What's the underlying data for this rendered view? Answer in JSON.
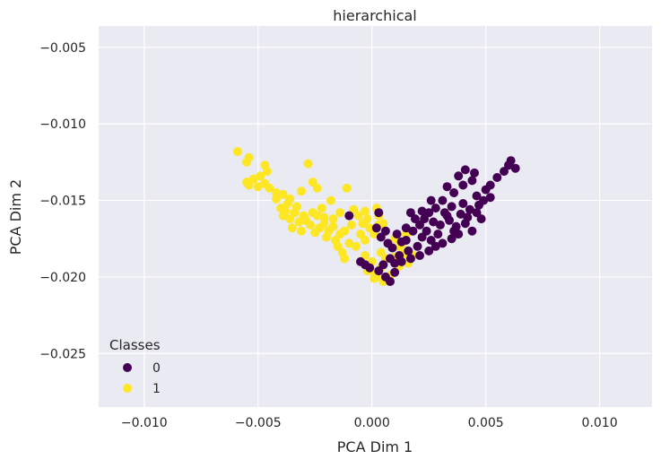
{
  "chart_data": {
    "type": "scatter",
    "title": "hierarchical",
    "xlabel": "PCA Dim 1",
    "ylabel": "PCA Dim 2",
    "xlim": [
      -0.012,
      0.0123
    ],
    "ylim": [
      -0.0285,
      -0.0036
    ],
    "xticks": [
      -0.01,
      -0.005,
      0.0,
      0.005,
      0.01
    ],
    "xtick_labels": [
      "−0.010",
      "−0.005",
      "0.000",
      "0.005",
      "0.010"
    ],
    "yticks": [
      -0.005,
      -0.01,
      -0.015,
      -0.02,
      -0.025
    ],
    "ytick_labels": [
      "−0.005",
      "−0.010",
      "−0.015",
      "−0.020",
      "−0.025"
    ],
    "grid": true,
    "legend": {
      "title": "Classes",
      "location": "lower-left",
      "entries": [
        {
          "label": "0",
          "color": "#440154"
        },
        {
          "label": "1",
          "color": "#fde725"
        }
      ]
    },
    "series": [
      {
        "name": "1",
        "color": "#fde725",
        "points": [
          [
            -0.0059,
            -0.0118
          ],
          [
            -0.0054,
            -0.0122
          ],
          [
            -0.0055,
            -0.0125
          ],
          [
            -0.0047,
            -0.0127
          ],
          [
            -0.0046,
            -0.0131
          ],
          [
            -0.0055,
            -0.0138
          ],
          [
            -0.0052,
            -0.0136
          ],
          [
            -0.0049,
            -0.0134
          ],
          [
            -0.0054,
            -0.014
          ],
          [
            -0.0047,
            -0.0139
          ],
          [
            -0.0045,
            -0.0142
          ],
          [
            -0.0039,
            -0.0146
          ],
          [
            -0.0036,
            -0.0149
          ],
          [
            -0.0042,
            -0.0149
          ],
          [
            -0.0037,
            -0.0152
          ],
          [
            -0.0033,
            -0.0154
          ],
          [
            -0.004,
            -0.0155
          ],
          [
            -0.0038,
            -0.0157
          ],
          [
            -0.0034,
            -0.0158
          ],
          [
            -0.003,
            -0.016
          ],
          [
            -0.0026,
            -0.0158
          ],
          [
            -0.0036,
            -0.0162
          ],
          [
            -0.0032,
            -0.0164
          ],
          [
            -0.0029,
            -0.0163
          ],
          [
            -0.0039,
            -0.016
          ],
          [
            -0.0031,
            -0.0144
          ],
          [
            -0.0026,
            -0.0138
          ],
          [
            -0.0028,
            -0.0126
          ],
          [
            -0.0024,
            -0.0142
          ],
          [
            -0.0022,
            -0.0155
          ],
          [
            -0.0027,
            -0.0166
          ],
          [
            -0.0023,
            -0.0168
          ],
          [
            -0.0025,
            -0.0171
          ],
          [
            -0.0021,
            -0.0165
          ],
          [
            -0.0019,
            -0.017
          ],
          [
            -0.0017,
            -0.0167
          ],
          [
            -0.002,
            -0.0174
          ],
          [
            -0.0016,
            -0.0176
          ],
          [
            -0.0014,
            -0.0172
          ],
          [
            -0.0012,
            -0.017
          ],
          [
            -0.001,
            -0.0178
          ],
          [
            -0.0013,
            -0.0184
          ],
          [
            -0.0009,
            -0.0166
          ],
          [
            -0.0006,
            -0.016
          ],
          [
            -0.0008,
            -0.0156
          ],
          [
            -0.0007,
            -0.018
          ],
          [
            -0.0005,
            -0.0172
          ],
          [
            -0.0003,
            -0.0176
          ],
          [
            -0.0004,
            -0.0165
          ],
          [
            -0.0002,
            -0.0162
          ],
          [
            -0.0001,
            -0.0168
          ],
          [
            0.0001,
            -0.0172
          ],
          [
            0.0003,
            -0.0166
          ],
          [
            0.0002,
            -0.0155
          ],
          [
            -0.0003,
            -0.0157
          ],
          [
            -0.0011,
            -0.0142
          ],
          [
            -0.0014,
            -0.0158
          ],
          [
            -0.0017,
            -0.0162
          ],
          [
            -0.0021,
            -0.0161
          ],
          [
            -0.0015,
            -0.018
          ],
          [
            -0.0012,
            -0.0188
          ],
          [
            -0.0003,
            -0.0186
          ],
          [
            0.0,
            -0.019
          ],
          [
            0.0004,
            -0.0184
          ],
          [
            0.0006,
            -0.0188
          ],
          [
            0.0004,
            -0.0194
          ],
          [
            0.0001,
            -0.0197
          ],
          [
            -0.0002,
            -0.0196
          ],
          [
            0.0002,
            -0.02
          ],
          [
            0.0005,
            -0.0203
          ],
          [
            0.0001,
            -0.0201
          ],
          [
            0.0008,
            -0.0199
          ],
          [
            0.001,
            -0.0187
          ],
          [
            0.0012,
            -0.0193
          ],
          [
            0.0014,
            -0.0185
          ],
          [
            0.0016,
            -0.0191
          ],
          [
            0.0018,
            -0.0186
          ],
          [
            0.0013,
            -0.0179
          ],
          [
            0.001,
            -0.0175
          ],
          [
            0.0015,
            -0.0172
          ],
          [
            0.0012,
            -0.018
          ],
          [
            0.0007,
            -0.0178
          ],
          [
            -0.0042,
            -0.0145
          ],
          [
            -0.005,
            -0.0141
          ],
          [
            -0.0035,
            -0.0168
          ],
          [
            -0.0031,
            -0.017
          ],
          [
            -0.0018,
            -0.015
          ],
          [
            -0.0024,
            -0.016
          ],
          [
            0.0005,
            -0.0165
          ],
          [
            0.0003,
            -0.016
          ]
        ]
      },
      {
        "name": "0",
        "color": "#440154",
        "points": [
          [
            0.0061,
            -0.0124
          ],
          [
            0.0063,
            -0.0129
          ],
          [
            0.0058,
            -0.0131
          ],
          [
            0.0055,
            -0.0135
          ],
          [
            0.006,
            -0.0127
          ],
          [
            0.0052,
            -0.014
          ],
          [
            0.005,
            -0.0143
          ],
          [
            0.0046,
            -0.0147
          ],
          [
            0.0049,
            -0.015
          ],
          [
            0.0045,
            -0.0132
          ],
          [
            0.0041,
            -0.013
          ],
          [
            0.0044,
            -0.0137
          ],
          [
            0.0038,
            -0.0134
          ],
          [
            0.0033,
            -0.0141
          ],
          [
            0.0036,
            -0.0145
          ],
          [
            0.004,
            -0.0152
          ],
          [
            0.0043,
            -0.0156
          ],
          [
            0.0039,
            -0.0159
          ],
          [
            0.0035,
            -0.0154
          ],
          [
            0.0032,
            -0.0158
          ],
          [
            0.0031,
            -0.015
          ],
          [
            0.0028,
            -0.0155
          ],
          [
            0.0025,
            -0.0158
          ],
          [
            0.0023,
            -0.0162
          ],
          [
            0.0027,
            -0.0164
          ],
          [
            0.003,
            -0.0166
          ],
          [
            0.0034,
            -0.0163
          ],
          [
            0.0037,
            -0.0167
          ],
          [
            0.0041,
            -0.0165
          ],
          [
            0.0042,
            -0.0161
          ],
          [
            0.0046,
            -0.0158
          ],
          [
            0.0038,
            -0.0172
          ],
          [
            0.0035,
            -0.0175
          ],
          [
            0.0031,
            -0.0178
          ],
          [
            0.0026,
            -0.0176
          ],
          [
            0.0024,
            -0.017
          ],
          [
            0.0021,
            -0.0166
          ],
          [
            0.0019,
            -0.0162
          ],
          [
            0.0017,
            -0.0158
          ],
          [
            0.0022,
            -0.0174
          ],
          [
            0.002,
            -0.018
          ],
          [
            0.0016,
            -0.0183
          ],
          [
            0.0013,
            -0.0177
          ],
          [
            0.0011,
            -0.0172
          ],
          [
            0.0015,
            -0.0168
          ],
          [
            0.0012,
            -0.0186
          ],
          [
            0.0009,
            -0.0181
          ],
          [
            0.0007,
            -0.0178
          ],
          [
            0.0004,
            -0.0174
          ],
          [
            0.0002,
            -0.0168
          ],
          [
            0.0006,
            -0.017
          ],
          [
            0.0008,
            -0.0188
          ],
          [
            0.0005,
            -0.0192
          ],
          [
            0.0003,
            -0.0196
          ],
          [
            0.0006,
            -0.02
          ],
          [
            0.0008,
            -0.0203
          ],
          [
            0.001,
            -0.0197
          ],
          [
            0.0013,
            -0.019
          ],
          [
            0.0017,
            -0.0188
          ],
          [
            0.0021,
            -0.0186
          ],
          [
            0.0025,
            -0.0183
          ],
          [
            0.0028,
            -0.018
          ],
          [
            -0.0003,
            -0.0192
          ],
          [
            -0.0001,
            -0.0194
          ],
          [
            -0.0005,
            -0.019
          ],
          [
            -0.001,
            -0.016
          ],
          [
            0.0003,
            -0.0158
          ],
          [
            0.0052,
            -0.0148
          ],
          [
            0.0048,
            -0.0162
          ],
          [
            0.0044,
            -0.017
          ],
          [
            0.0036,
            -0.017
          ],
          [
            0.0029,
            -0.0172
          ],
          [
            0.0033,
            -0.016
          ],
          [
            0.0026,
            -0.015
          ],
          [
            0.0022,
            -0.0157
          ],
          [
            0.0018,
            -0.017
          ],
          [
            0.004,
            -0.014
          ],
          [
            0.0047,
            -0.0153
          ],
          [
            0.001,
            -0.0191
          ],
          [
            0.0015,
            -0.0176
          ]
        ]
      }
    ]
  }
}
